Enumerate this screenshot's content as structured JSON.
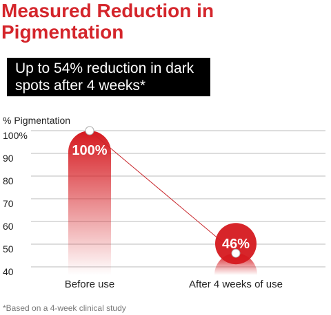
{
  "chart_data": {
    "type": "bar",
    "title": "Measured Reduction in Pigmentation",
    "subtitle": "Up to 54% reduction in dark spots after 4 weeks*",
    "y_label": "% Pigmentation",
    "categories": [
      "Before use",
      "After 4 weeks of use"
    ],
    "values": [
      100,
      46
    ],
    "value_labels": [
      "100%",
      "46%"
    ],
    "color": "#d5191f",
    "ylim": [
      40,
      100
    ],
    "yticks": [
      {
        "value": 100,
        "label": "100%"
      },
      90,
      80,
      70,
      60,
      50,
      40
    ],
    "grid": true,
    "footnote": "*Based on a 4-week clinical study"
  }
}
